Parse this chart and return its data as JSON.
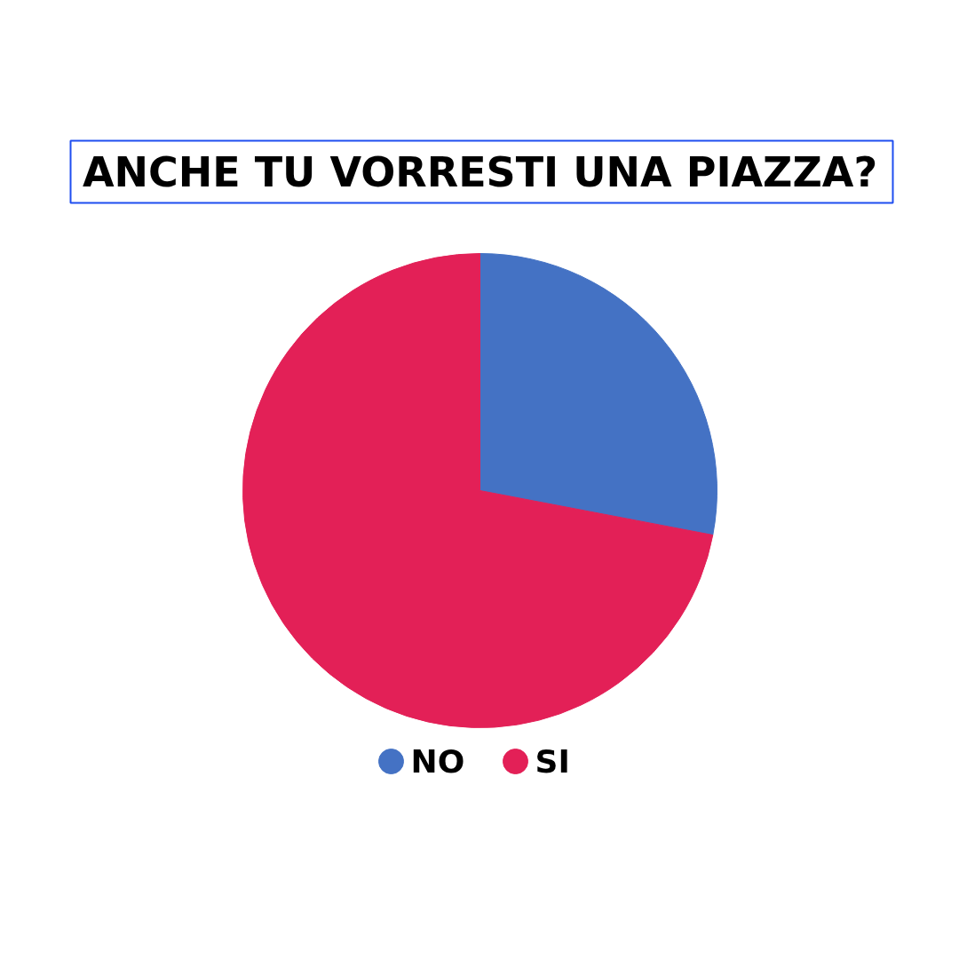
{
  "chart_data": {
    "type": "pie",
    "title": "ANCHE TU VORRESTI UNA PIAZZA?",
    "categories": [
      "NO",
      "SI"
    ],
    "values": [
      28,
      72
    ],
    "colors": [
      "#4472c4",
      "#e32057"
    ],
    "legend": "bottom"
  }
}
